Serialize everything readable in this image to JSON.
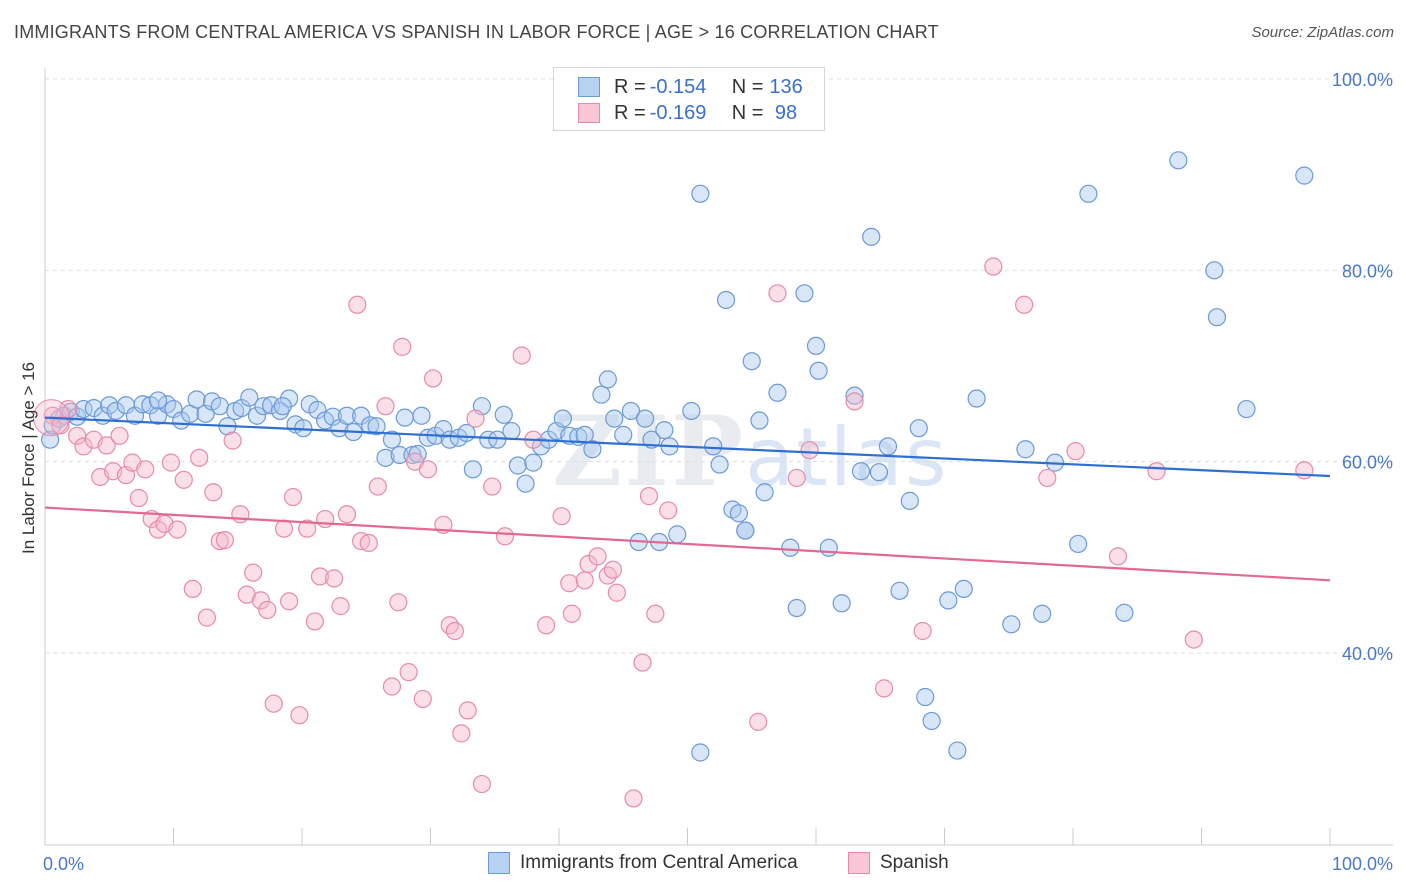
{
  "header": {
    "title": "IMMIGRANTS FROM CENTRAL AMERICA VS SPANISH IN LABOR FORCE | AGE > 16 CORRELATION CHART",
    "source": "Source: ZipAtlas.com"
  },
  "watermark": {
    "zip": "ZIP",
    "atlas": "atlas"
  },
  "legend": {
    "row1": {
      "r_label": "R = ",
      "r_value": "-0.154",
      "n_label": "N = ",
      "n_value": "136"
    },
    "row2": {
      "r_label": "R = ",
      "r_value": "-0.169",
      "n_label": "N = ",
      "n_value": " 98"
    }
  },
  "bottom_legend": {
    "series1": "Immigrants from Central America",
    "series2": "Spanish"
  },
  "colors": {
    "blue_fill": "#a8c8ee",
    "blue_stroke": "#6a9ad8",
    "blue_line": "#2e6fd0",
    "pink_fill": "#f5b8cc",
    "pink_stroke": "#e88aa8",
    "pink_line": "#e06a94",
    "grid": "#dddddd",
    "tick_text": "#4a78c8"
  },
  "chart_data": {
    "type": "scatter",
    "title": "IMMIGRANTS FROM CENTRAL AMERICA VS SPANISH IN LABOR FORCE | AGE > 16 CORRELATION CHART",
    "xlabel": "",
    "ylabel": "In Labor Force | Age > 16",
    "xlim": [
      0,
      100
    ],
    "ylim": [
      20,
      102
    ],
    "x_tick_labels": [
      {
        "value": 0,
        "label": "0.0%"
      },
      {
        "value": 100,
        "label": "100.0%"
      }
    ],
    "y_tick_labels": [
      {
        "value": 40,
        "label": "40.0%"
      },
      {
        "value": 60,
        "label": "60.0%"
      },
      {
        "value": 80,
        "label": "80.0%"
      },
      {
        "value": 100,
        "label": "100.0%"
      }
    ],
    "series": [
      {
        "name": "Immigrants from Central America",
        "R": -0.154,
        "N": 136,
        "trend": {
          "x0": 0,
          "y0": 64.6,
          "x1": 100,
          "y1": 58.5
        },
        "points": [
          [
            0.4,
            62.3
          ],
          [
            0.6,
            63.8
          ],
          [
            1.1,
            64.5
          ],
          [
            1.5,
            64.8
          ],
          [
            2.0,
            65.2
          ],
          [
            2.5,
            64.7
          ],
          [
            3.0,
            65.5
          ],
          [
            3.8,
            65.6
          ],
          [
            4.5,
            64.8
          ],
          [
            5.0,
            65.9
          ],
          [
            5.5,
            65.3
          ],
          [
            6.3,
            65.9
          ],
          [
            7.0,
            64.8
          ],
          [
            7.6,
            66.0
          ],
          [
            8.2,
            65.9
          ],
          [
            8.8,
            64.8
          ],
          [
            9.5,
            66.0
          ],
          [
            10.0,
            65.5
          ],
          [
            10.6,
            64.3
          ],
          [
            11.3,
            65.0
          ],
          [
            11.8,
            66.5
          ],
          [
            12.5,
            65.0
          ],
          [
            13.0,
            66.3
          ],
          [
            13.6,
            65.8
          ],
          [
            14.2,
            63.7
          ],
          [
            14.8,
            65.3
          ],
          [
            15.3,
            65.6
          ],
          [
            15.9,
            66.7
          ],
          [
            16.5,
            64.8
          ],
          [
            17.0,
            65.8
          ],
          [
            17.6,
            65.9
          ],
          [
            18.3,
            65.3
          ],
          [
            19.0,
            66.6
          ],
          [
            19.5,
            63.9
          ],
          [
            20.1,
            63.5
          ],
          [
            20.6,
            66.0
          ],
          [
            21.2,
            65.4
          ],
          [
            21.8,
            64.3
          ],
          [
            22.4,
            64.7
          ],
          [
            22.9,
            63.5
          ],
          [
            23.5,
            64.8
          ],
          [
            24.0,
            63.1
          ],
          [
            24.6,
            64.8
          ],
          [
            25.3,
            63.8
          ],
          [
            25.8,
            63.7
          ],
          [
            26.5,
            60.4
          ],
          [
            27.0,
            62.3
          ],
          [
            27.6,
            60.7
          ],
          [
            28.0,
            64.6
          ],
          [
            28.6,
            60.7
          ],
          [
            29.3,
            64.8
          ],
          [
            29.8,
            62.5
          ],
          [
            30.4,
            62.7
          ],
          [
            31.0,
            63.4
          ],
          [
            31.5,
            62.3
          ],
          [
            32.2,
            62.5
          ],
          [
            32.8,
            63.0
          ],
          [
            33.3,
            59.2
          ],
          [
            34.0,
            65.8
          ],
          [
            34.5,
            62.3
          ],
          [
            35.2,
            62.3
          ],
          [
            35.7,
            64.9
          ],
          [
            36.3,
            63.2
          ],
          [
            36.8,
            59.6
          ],
          [
            37.4,
            57.7
          ],
          [
            38.0,
            59.9
          ],
          [
            38.6,
            61.6
          ],
          [
            39.2,
            62.3
          ],
          [
            39.8,
            63.2
          ],
          [
            40.3,
            64.5
          ],
          [
            40.8,
            62.7
          ],
          [
            41.5,
            62.6
          ],
          [
            42.0,
            62.8
          ],
          [
            42.6,
            61.3
          ],
          [
            43.3,
            67.0
          ],
          [
            43.8,
            68.6
          ],
          [
            44.3,
            64.5
          ],
          [
            45.0,
            62.8
          ],
          [
            45.6,
            65.3
          ],
          [
            46.2,
            51.6
          ],
          [
            46.7,
            64.5
          ],
          [
            47.2,
            62.3
          ],
          [
            47.8,
            51.6
          ],
          [
            48.2,
            63.3
          ],
          [
            48.6,
            61.6
          ],
          [
            49.2,
            52.4
          ],
          [
            50.3,
            65.3
          ],
          [
            51.0,
            88.0
          ],
          [
            52.0,
            61.6
          ],
          [
            52.5,
            59.7
          ],
          [
            53.0,
            76.9
          ],
          [
            53.5,
            55.0
          ],
          [
            54.0,
            54.6
          ],
          [
            54.5,
            52.8
          ],
          [
            55.0,
            70.5
          ],
          [
            55.6,
            64.3
          ],
          [
            56.0,
            56.8
          ],
          [
            57.0,
            67.2
          ],
          [
            58.0,
            51.0
          ],
          [
            58.5,
            44.7
          ],
          [
            59.1,
            77.6
          ],
          [
            60.0,
            72.1
          ],
          [
            60.2,
            69.5
          ],
          [
            61.0,
            51.0
          ],
          [
            62.0,
            45.2
          ],
          [
            63.0,
            66.9
          ],
          [
            63.5,
            59.0
          ],
          [
            64.3,
            83.5
          ],
          [
            64.9,
            58.9
          ],
          [
            65.6,
            61.6
          ],
          [
            66.5,
            46.5
          ],
          [
            67.3,
            55.9
          ],
          [
            68.0,
            63.5
          ],
          [
            68.5,
            35.4
          ],
          [
            69.0,
            32.9
          ],
          [
            70.3,
            45.5
          ],
          [
            71.5,
            46.7
          ],
          [
            71.0,
            29.8
          ],
          [
            72.5,
            66.6
          ],
          [
            75.2,
            43.0
          ],
          [
            76.3,
            61.3
          ],
          [
            77.6,
            44.1
          ],
          [
            78.6,
            59.9
          ],
          [
            80.4,
            51.4
          ],
          [
            81.2,
            88.0
          ],
          [
            84.0,
            44.2
          ],
          [
            88.2,
            91.5
          ],
          [
            91.0,
            80.0
          ],
          [
            91.2,
            75.1
          ],
          [
            93.5,
            65.5
          ],
          [
            98.0,
            89.9
          ],
          [
            51.0,
            29.6
          ],
          [
            54.5,
            52.8
          ],
          [
            29.0,
            60.8
          ],
          [
            18.5,
            65.8
          ],
          [
            8.8,
            66.4
          ]
        ]
      },
      {
        "name": "Spanish",
        "R": -0.169,
        "N": 98,
        "trend": {
          "x0": 0,
          "y0": 55.2,
          "x1": 100,
          "y1": 47.6
        },
        "points": [
          [
            0.6,
            64.8
          ],
          [
            1.2,
            63.8
          ],
          [
            1.8,
            65.5
          ],
          [
            2.5,
            62.7
          ],
          [
            3.0,
            61.6
          ],
          [
            3.8,
            62.3
          ],
          [
            4.3,
            58.4
          ],
          [
            4.8,
            61.7
          ],
          [
            5.3,
            59.0
          ],
          [
            5.8,
            62.7
          ],
          [
            6.3,
            58.6
          ],
          [
            6.8,
            59.9
          ],
          [
            7.3,
            56.2
          ],
          [
            7.8,
            59.2
          ],
          [
            8.3,
            54.0
          ],
          [
            8.8,
            52.9
          ],
          [
            9.3,
            53.5
          ],
          [
            9.8,
            59.9
          ],
          [
            10.3,
            52.9
          ],
          [
            10.8,
            58.1
          ],
          [
            11.5,
            46.7
          ],
          [
            12.0,
            60.4
          ],
          [
            12.6,
            43.7
          ],
          [
            13.1,
            56.8
          ],
          [
            13.6,
            51.7
          ],
          [
            14.0,
            51.8
          ],
          [
            14.6,
            62.2
          ],
          [
            15.2,
            54.5
          ],
          [
            15.7,
            46.1
          ],
          [
            16.2,
            48.4
          ],
          [
            16.8,
            45.5
          ],
          [
            17.3,
            44.5
          ],
          [
            17.8,
            34.7
          ],
          [
            18.6,
            53.0
          ],
          [
            19.0,
            45.4
          ],
          [
            19.3,
            56.3
          ],
          [
            19.8,
            33.5
          ],
          [
            20.4,
            53.0
          ],
          [
            21.0,
            43.3
          ],
          [
            21.4,
            48.0
          ],
          [
            21.8,
            54.0
          ],
          [
            22.5,
            47.8
          ],
          [
            23.0,
            44.9
          ],
          [
            23.5,
            54.5
          ],
          [
            24.3,
            76.4
          ],
          [
            24.6,
            51.7
          ],
          [
            25.2,
            51.5
          ],
          [
            25.9,
            57.4
          ],
          [
            26.5,
            65.8
          ],
          [
            27.0,
            36.5
          ],
          [
            27.5,
            45.3
          ],
          [
            27.8,
            72.0
          ],
          [
            28.3,
            38.0
          ],
          [
            28.8,
            60.0
          ],
          [
            29.4,
            35.2
          ],
          [
            29.8,
            59.2
          ],
          [
            30.2,
            68.7
          ],
          [
            31.0,
            53.4
          ],
          [
            31.5,
            42.9
          ],
          [
            31.9,
            42.3
          ],
          [
            32.4,
            31.6
          ],
          [
            32.9,
            34.0
          ],
          [
            33.5,
            64.5
          ],
          [
            34.0,
            26.3
          ],
          [
            34.8,
            57.4
          ],
          [
            35.8,
            52.2
          ],
          [
            37.1,
            71.1
          ],
          [
            38.0,
            62.3
          ],
          [
            39.0,
            42.9
          ],
          [
            40.2,
            54.3
          ],
          [
            40.8,
            47.3
          ],
          [
            41.0,
            44.1
          ],
          [
            42.0,
            47.6
          ],
          [
            42.3,
            49.3
          ],
          [
            43.0,
            50.1
          ],
          [
            43.8,
            48.1
          ],
          [
            44.2,
            48.7
          ],
          [
            44.5,
            46.3
          ],
          [
            45.8,
            24.8
          ],
          [
            46.5,
            39.0
          ],
          [
            47.0,
            56.4
          ],
          [
            47.5,
            44.1
          ],
          [
            48.5,
            54.9
          ],
          [
            55.5,
            32.8
          ],
          [
            57.0,
            77.6
          ],
          [
            58.5,
            58.3
          ],
          [
            59.5,
            61.2
          ],
          [
            63.0,
            66.3
          ],
          [
            65.3,
            36.3
          ],
          [
            68.3,
            42.3
          ],
          [
            73.8,
            80.4
          ],
          [
            76.2,
            76.4
          ],
          [
            78.0,
            58.3
          ],
          [
            80.2,
            61.1
          ],
          [
            83.5,
            50.1
          ],
          [
            86.5,
            59.0
          ],
          [
            89.4,
            41.4
          ],
          [
            98.0,
            59.1
          ]
        ]
      }
    ]
  }
}
